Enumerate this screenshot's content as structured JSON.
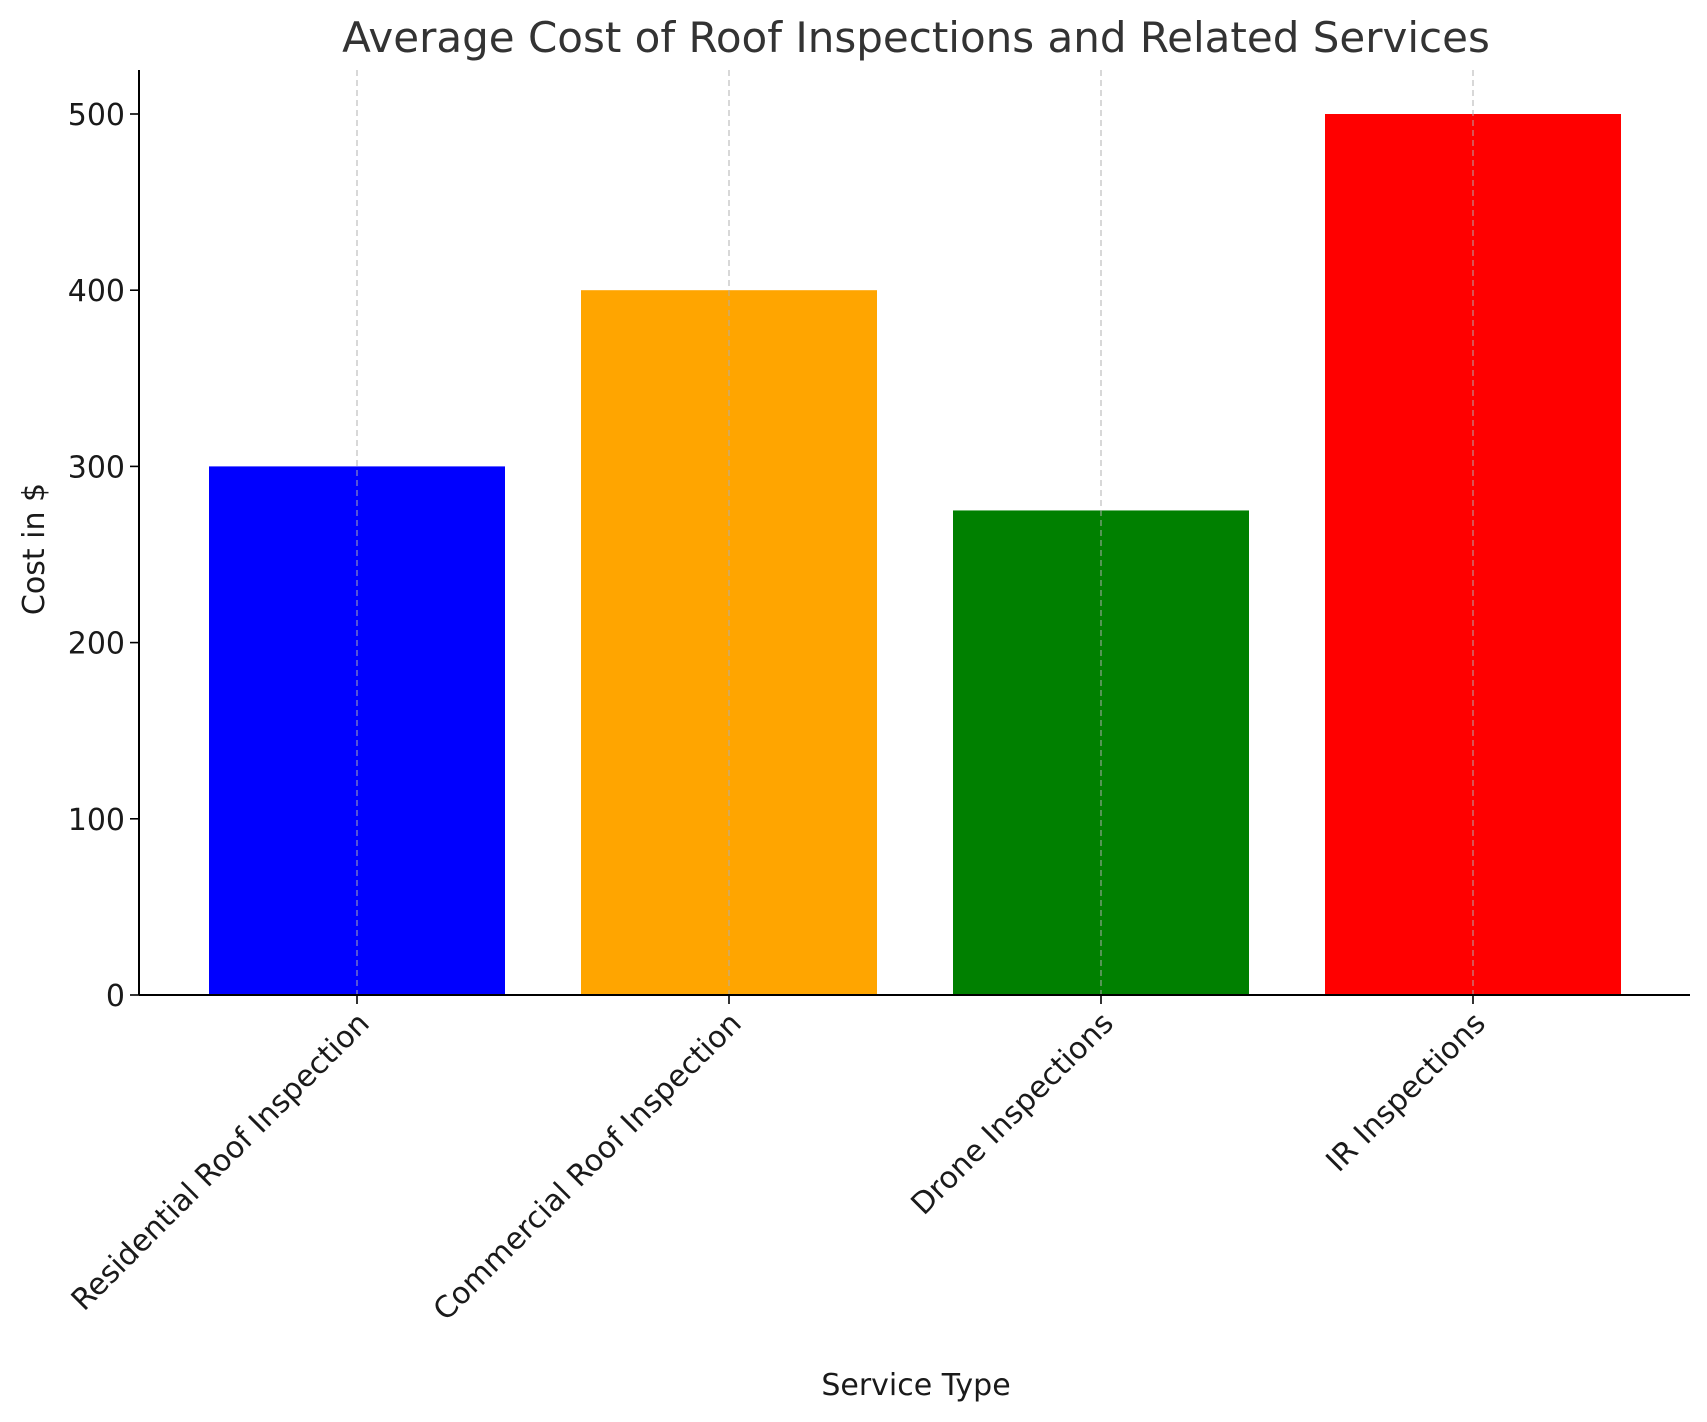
{
  "chart_data": {
    "type": "bar",
    "title": "Average Cost of Roof Inspections and Related Services",
    "xlabel": "Service Type",
    "ylabel": "Cost in $",
    "categories": [
      "Residential Roof Inspection",
      "Commercial Roof Inspection",
      "Drone Inspections",
      "IR Inspections"
    ],
    "values": [
      300,
      400,
      275,
      500
    ],
    "colors": [
      "#0000ff",
      "#ffa500",
      "#008000",
      "#ff0000"
    ],
    "ylim": [
      0,
      525
    ],
    "yticks": [
      0,
      100,
      200,
      300,
      400,
      500
    ],
    "grid": "vertical dashed (x-axis only)",
    "legend": "none"
  }
}
